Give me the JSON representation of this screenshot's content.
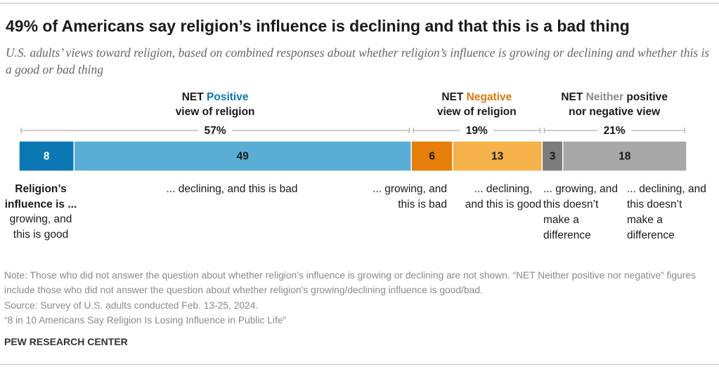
{
  "chart_data": {
    "type": "stacked-bar",
    "title": "49% of Americans say religion’s influence is declining and that this is a bad thing",
    "subtitle": "U.S. adults’ views toward religion, based on combined responses about whether religion’s influence is growing or declining and whether this is a good or bad thing",
    "category_heading": "Religion’s influence is ...",
    "categories": [
      "growing, and this is good",
      "... declining, and this is bad",
      "... growing, and this is bad",
      "... declining, and this is good",
      "... growing, and this doesn’t make a difference",
      "... declining, and this doesn’t make a difference"
    ],
    "values": [
      8,
      49,
      6,
      13,
      3,
      18
    ],
    "colors": [
      "#0b78b3",
      "#5aaed6",
      "#e67e0a",
      "#f5b24a",
      "#7c7c7c",
      "#a8a8a8"
    ],
    "label_colors": [
      "#ffffff",
      "#1a1a1a",
      "#1a1a1a",
      "#1a1a1a",
      "#1a1a1a",
      "#1a1a1a"
    ],
    "groups": [
      {
        "prefix": "NET",
        "highlight": "Positive",
        "suffix": "view of religion",
        "color": "#0b78b3",
        "value": 57,
        "value_label": "57%"
      },
      {
        "prefix": "NET",
        "highlight": "Negative",
        "suffix": "view of religion",
        "color": "#d9790a",
        "value": 19,
        "value_label": "19%"
      },
      {
        "prefix": "NET",
        "highlight": "Neither",
        "suffix": "positive nor negative view",
        "color": "#8c8c8c",
        "value": 21,
        "value_label": "21%"
      }
    ],
    "note": "Note: Those who did not answer the question about whether religion’s influence is growing or declining are not shown. “NET Neither positive nor negative” figures include those who did not answer the question about whether religion’s growing/declining influence is good/bad.",
    "source": "Source: Survey of U.S. adults conducted Feb. 13-25, 2024.",
    "report": "“8 in 10 Americans Say Religion Is Losing Influence in Public Life”",
    "brand": "PEW RESEARCH CENTER"
  }
}
